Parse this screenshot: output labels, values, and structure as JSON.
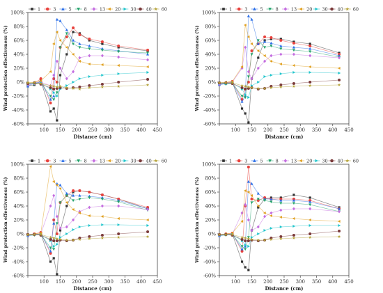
{
  "chart_data": [
    {
      "type": "line",
      "xlabel": "Distance (cm)",
      "ylabel": "Wind protection effectiveness (%)",
      "xlim": [
        50,
        450
      ],
      "ylim": [
        -60,
        100
      ],
      "xticks": [
        50,
        100,
        150,
        200,
        250,
        300,
        350,
        400,
        450
      ],
      "yticks": [
        -60,
        -40,
        -20,
        0,
        20,
        40,
        60,
        80,
        100
      ],
      "xtick_labels": [
        "",
        "100",
        "150",
        "200",
        "250",
        "300",
        "350",
        "400",
        "450"
      ],
      "ytick_labels": [
        "-60%",
        "-40%",
        "-20%",
        "0%",
        "20%",
        "40%",
        "60%",
        "80%",
        "100%"
      ],
      "legend_position": "top",
      "x": [
        50,
        70,
        90,
        120,
        130,
        140,
        150,
        170,
        190,
        210,
        240,
        280,
        330,
        420
      ],
      "series": [
        {
          "name": "1",
          "color": "#333333",
          "marker": "square",
          "values": [
            -5,
            -4,
            2,
            -42,
            -38,
            -55,
            10,
            40,
            72,
            70,
            60,
            55,
            50,
            45
          ]
        },
        {
          "name": "3",
          "color": "#e8413c",
          "marker": "circle",
          "values": [
            -3,
            -2,
            5,
            -30,
            5,
            0,
            50,
            65,
            78,
            68,
            62,
            58,
            52,
            46
          ]
        },
        {
          "name": "5",
          "color": "#2a6ee8",
          "marker": "triangle-up",
          "values": [
            -6,
            -1,
            0,
            -25,
            -20,
            90,
            88,
            75,
            60,
            55,
            52,
            48,
            45,
            40
          ]
        },
        {
          "name": "8",
          "color": "#23a36b",
          "marker": "triangle-down",
          "values": [
            -2,
            -3,
            -1,
            -20,
            -25,
            -15,
            50,
            70,
            55,
            50,
            48,
            46,
            44,
            42
          ]
        },
        {
          "name": "13",
          "color": "#c46de0",
          "marker": "diamond",
          "values": [
            -4,
            -2,
            0,
            -5,
            10,
            30,
            20,
            5,
            15,
            35,
            38,
            38,
            36,
            32
          ]
        },
        {
          "name": "20",
          "color": "#e0a020",
          "marker": "triangle-left",
          "values": [
            -1,
            0,
            2,
            15,
            55,
            72,
            60,
            50,
            40,
            30,
            26,
            25,
            24,
            22
          ]
        },
        {
          "name": "30",
          "color": "#22c5cc",
          "marker": "triangle-right",
          "values": [
            -3,
            -2,
            -1,
            -10,
            -15,
            -20,
            -10,
            -5,
            0,
            5,
            8,
            10,
            12,
            14
          ]
        },
        {
          "name": "40",
          "color": "#7a3a3a",
          "marker": "circle",
          "values": [
            -2,
            -1,
            -3,
            -8,
            -10,
            -9,
            -8,
            -9,
            -8,
            -7,
            -5,
            -3,
            0,
            4
          ]
        },
        {
          "name": "60",
          "color": "#b5a33a",
          "marker": "star",
          "values": [
            -1,
            -1,
            -2,
            -5,
            -6,
            -7,
            -6,
            -8,
            -9,
            -10,
            -8,
            -7,
            -6,
            -4
          ]
        }
      ]
    },
    {
      "type": "line",
      "xlabel": "Distance (cm)",
      "ylabel": "Wind protection effectiveness (%)",
      "xlim": [
        50,
        450
      ],
      "ylim": [
        -60,
        100
      ],
      "xticks": [
        50,
        100,
        150,
        200,
        250,
        300,
        350,
        400,
        450
      ],
      "yticks": [
        -60,
        -40,
        -20,
        0,
        20,
        40,
        60,
        80,
        100
      ],
      "xtick_labels": [
        "",
        "100",
        "150",
        "200",
        "250",
        "300",
        "350",
        "400",
        "450"
      ],
      "ytick_labels": [
        "-60%",
        "-40%",
        "-20%",
        "0%",
        "20%",
        "40%",
        "60%",
        "80%",
        "100%"
      ],
      "legend_position": "top",
      "x": [
        50,
        70,
        90,
        120,
        130,
        140,
        150,
        170,
        190,
        210,
        240,
        280,
        330,
        420
      ],
      "series": [
        {
          "name": "1",
          "color": "#333333",
          "marker": "square",
          "values": [
            -3,
            -2,
            0,
            -38,
            -45,
            -58,
            5,
            35,
            60,
            62,
            62,
            58,
            55,
            42
          ]
        },
        {
          "name": "3",
          "color": "#e8413c",
          "marker": "circle",
          "values": [
            -2,
            -1,
            1,
            -25,
            -10,
            0,
            45,
            55,
            65,
            64,
            60,
            56,
            52,
            40
          ]
        },
        {
          "name": "5",
          "color": "#2a6ee8",
          "marker": "triangle-up",
          "values": [
            -4,
            -2,
            -1,
            -28,
            -20,
            95,
            90,
            55,
            58,
            56,
            52,
            50,
            48,
            38
          ]
        },
        {
          "name": "8",
          "color": "#23a36b",
          "marker": "triangle-down",
          "values": [
            -2,
            -3,
            -2,
            -20,
            -22,
            8,
            40,
            60,
            50,
            52,
            48,
            46,
            44,
            36
          ]
        },
        {
          "name": "13",
          "color": "#c46de0",
          "marker": "diamond",
          "values": [
            -3,
            -1,
            0,
            20,
            50,
            15,
            5,
            20,
            30,
            38,
            40,
            40,
            38,
            35
          ]
        },
        {
          "name": "20",
          "color": "#e0a020",
          "marker": "triangle-left",
          "values": [
            -1,
            0,
            1,
            22,
            82,
            65,
            55,
            45,
            38,
            30,
            26,
            24,
            22,
            20
          ]
        },
        {
          "name": "30",
          "color": "#22c5cc",
          "marker": "triangle-right",
          "values": [
            -2,
            -2,
            -1,
            -10,
            -18,
            -22,
            -5,
            0,
            8,
            10,
            12,
            14,
            14,
            13
          ]
        },
        {
          "name": "40",
          "color": "#7a3a3a",
          "marker": "circle",
          "values": [
            -1,
            -1,
            -2,
            -8,
            -10,
            -9,
            -8,
            -10,
            -9,
            -6,
            -4,
            -2,
            0,
            3
          ]
        },
        {
          "name": "60",
          "color": "#b5a33a",
          "marker": "star",
          "values": [
            -1,
            -1,
            -1,
            -5,
            -6,
            -7,
            -8,
            -9,
            -9,
            -8,
            -7,
            -6,
            -5,
            -4
          ]
        }
      ]
    },
    {
      "type": "line",
      "xlabel": "Distance (cm)",
      "ylabel": "Wind protection effectiveness (%)",
      "xlim": [
        50,
        450
      ],
      "ylim": [
        -60,
        100
      ],
      "xticks": [
        50,
        100,
        150,
        200,
        250,
        300,
        350,
        400,
        450
      ],
      "yticks": [
        -60,
        -40,
        -20,
        0,
        20,
        40,
        60,
        80,
        100
      ],
      "xtick_labels": [
        "",
        "100",
        "150",
        "200",
        "250",
        "300",
        "350",
        "400",
        "450"
      ],
      "ytick_labels": [
        "-60%",
        "-40%",
        "-20%",
        "0%",
        "20%",
        "40%",
        "60%",
        "80%",
        "100%"
      ],
      "legend_position": "top",
      "x": [
        50,
        70,
        90,
        120,
        130,
        140,
        150,
        170,
        190,
        210,
        240,
        280,
        330,
        420
      ],
      "series": [
        {
          "name": "1",
          "color": "#333333",
          "marker": "square",
          "values": [
            -2,
            -1,
            0,
            -40,
            -35,
            -58,
            5,
            40,
            60,
            62,
            60,
            56,
            50,
            36
          ]
        },
        {
          "name": "3",
          "color": "#e8413c",
          "marker": "circle",
          "values": [
            -1,
            0,
            2,
            -28,
            20,
            0,
            45,
            55,
            62,
            62,
            60,
            56,
            50,
            38
          ]
        },
        {
          "name": "5",
          "color": "#2a6ee8",
          "marker": "triangle-up",
          "values": [
            -3,
            -1,
            0,
            -25,
            15,
            72,
            70,
            58,
            55,
            55,
            54,
            52,
            48,
            36
          ]
        },
        {
          "name": "8",
          "color": "#23a36b",
          "marker": "triangle-down",
          "values": [
            -2,
            -2,
            -1,
            -20,
            -22,
            15,
            45,
            55,
            48,
            50,
            52,
            50,
            46,
            34
          ]
        },
        {
          "name": "13",
          "color": "#c46de0",
          "marker": "diamond",
          "values": [
            -2,
            -1,
            0,
            40,
            55,
            25,
            8,
            10,
            20,
            32,
            38,
            40,
            40,
            35
          ]
        },
        {
          "name": "20",
          "color": "#e0a020",
          "marker": "triangle-left",
          "values": [
            -1,
            0,
            1,
            97,
            75,
            70,
            65,
            45,
            35,
            30,
            26,
            25,
            22,
            20
          ]
        },
        {
          "name": "30",
          "color": "#22c5cc",
          "marker": "triangle-right",
          "values": [
            -2,
            -1,
            -1,
            -10,
            -18,
            -15,
            -5,
            0,
            6,
            10,
            12,
            13,
            13,
            12
          ]
        },
        {
          "name": "40",
          "color": "#7a3a3a",
          "marker": "circle",
          "values": [
            -1,
            -1,
            -2,
            -8,
            -10,
            -10,
            -9,
            -10,
            -9,
            -6,
            -4,
            -2,
            0,
            3
          ]
        },
        {
          "name": "60",
          "color": "#b5a33a",
          "marker": "star",
          "values": [
            -1,
            -1,
            -1,
            -5,
            -6,
            -7,
            -8,
            -9,
            -9,
            -8,
            -7,
            -6,
            -5,
            -4
          ]
        }
      ]
    },
    {
      "type": "line",
      "xlabel": "Distance (cm)",
      "ylabel": "Wind protection effectiveness (%)",
      "xlim": [
        50,
        450
      ],
      "ylim": [
        -60,
        100
      ],
      "xticks": [
        50,
        100,
        150,
        200,
        250,
        300,
        350,
        400,
        450
      ],
      "yticks": [
        -60,
        -40,
        -20,
        0,
        20,
        40,
        60,
        80,
        100
      ],
      "xtick_labels": [
        "",
        "100",
        "150",
        "200",
        "250",
        "300",
        "350",
        "400",
        "450"
      ],
      "ytick_labels": [
        "-60%",
        "-40%",
        "-20%",
        "0%",
        "20%",
        "40%",
        "60%",
        "80%",
        "100%"
      ],
      "legend_position": "top",
      "x": [
        50,
        70,
        90,
        120,
        130,
        140,
        150,
        170,
        190,
        210,
        240,
        280,
        330,
        420
      ],
      "series": [
        {
          "name": "1",
          "color": "#333333",
          "marker": "square",
          "values": [
            -2,
            -1,
            0,
            -40,
            -48,
            -52,
            5,
            38,
            50,
            52,
            52,
            56,
            52,
            38
          ]
        },
        {
          "name": "3",
          "color": "#e8413c",
          "marker": "circle",
          "values": [
            -1,
            0,
            1,
            -25,
            40,
            96,
            50,
            48,
            52,
            50,
            50,
            50,
            48,
            36
          ]
        },
        {
          "name": "5",
          "color": "#2a6ee8",
          "marker": "triangle-up",
          "values": [
            -3,
            -1,
            0,
            -22,
            -18,
            75,
            72,
            58,
            50,
            50,
            48,
            48,
            46,
            36
          ]
        },
        {
          "name": "8",
          "color": "#23a36b",
          "marker": "triangle-down",
          "values": [
            -2,
            -2,
            -1,
            -18,
            -22,
            -5,
            45,
            50,
            48,
            46,
            44,
            44,
            42,
            32
          ]
        },
        {
          "name": "13",
          "color": "#c46de0",
          "marker": "diamond",
          "values": [
            -2,
            -1,
            0,
            30,
            42,
            20,
            5,
            10,
            25,
            30,
            34,
            36,
            36,
            32
          ]
        },
        {
          "name": "20",
          "color": "#e0a020",
          "marker": "triangle-left",
          "values": [
            -1,
            0,
            1,
            18,
            62,
            60,
            55,
            40,
            30,
            26,
            24,
            22,
            20,
            18
          ]
        },
        {
          "name": "30",
          "color": "#22c5cc",
          "marker": "triangle-right",
          "values": [
            -2,
            -1,
            -1,
            -10,
            -16,
            -18,
            -5,
            0,
            5,
            8,
            10,
            11,
            12,
            12
          ]
        },
        {
          "name": "40",
          "color": "#7a3a3a",
          "marker": "circle",
          "values": [
            -1,
            -1,
            -2,
            -8,
            -10,
            -10,
            -9,
            -10,
            -9,
            -6,
            -4,
            -2,
            0,
            4
          ]
        },
        {
          "name": "60",
          "color": "#b5a33a",
          "marker": "star",
          "values": [
            -1,
            -1,
            -1,
            -5,
            -6,
            -7,
            -8,
            -9,
            -9,
            -8,
            -7,
            -6,
            -5,
            -4
          ]
        }
      ]
    }
  ]
}
